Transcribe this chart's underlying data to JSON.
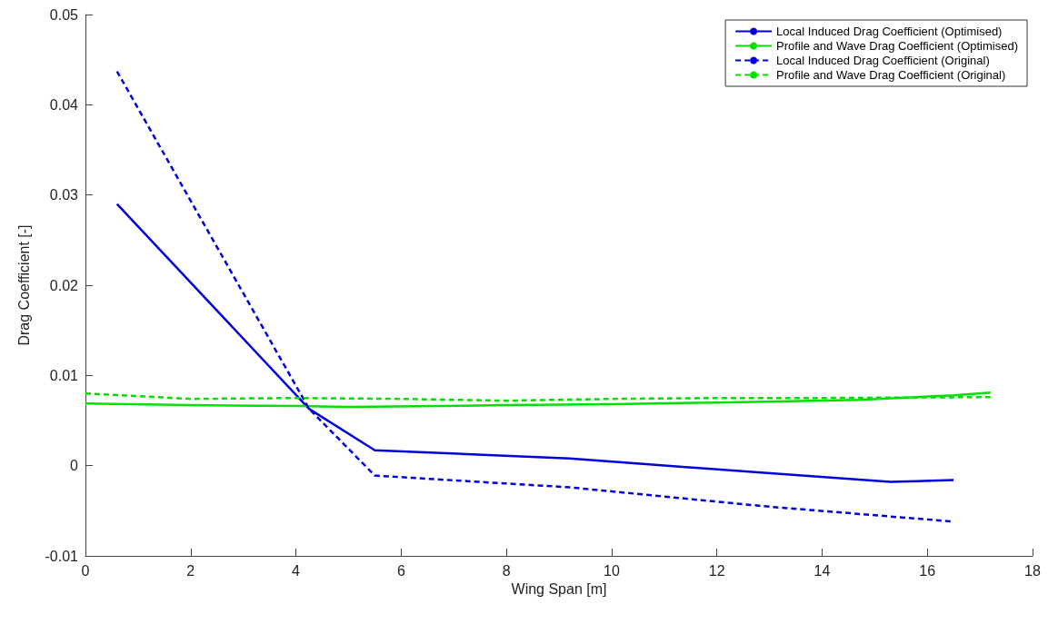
{
  "chart_data": {
    "type": "line",
    "xlabel": "Wing Span [m]",
    "ylabel": "Drag Coefficient [-]",
    "xlim": [
      0,
      18
    ],
    "xticks": [
      0,
      2,
      4,
      6,
      8,
      10,
      12,
      14,
      16,
      18
    ],
    "ylim": [
      -0.01,
      0.05
    ],
    "yticks": [
      -0.01,
      0,
      0.01,
      0.02,
      0.03,
      0.04,
      0.05
    ],
    "grid": false,
    "legend": "top right",
    "marker": "none",
    "series": [
      {
        "name": "Local Induced Drag Coefficient (Optimised)",
        "color": "#0000dd",
        "line_style": "solid",
        "x": [
          0.6,
          4.25,
          5.5,
          9.2,
          12.9,
          15.3,
          16.5
        ],
        "values": [
          0.029,
          0.0063,
          0.0017,
          0.0008,
          -0.0008,
          -0.0018,
          -0.0016
        ]
      },
      {
        "name": "Profile and Wave Drag Coefficient (Optimised)",
        "color": "#00e000",
        "line_style": "solid",
        "x": [
          0,
          2,
          4,
          5,
          8,
          10,
          12,
          14.7,
          16.5,
          17.2
        ],
        "values": [
          0.0069,
          0.0067,
          0.0066,
          0.0065,
          0.0067,
          0.0068,
          0.007,
          0.0073,
          0.0078,
          0.0081
        ]
      },
      {
        "name": "Local Induced Drag Coefficient (Original)",
        "color": "#0000dd",
        "line_style": "dashed",
        "x": [
          0.6,
          4.25,
          5.5,
          9.2,
          12.9,
          16.5
        ],
        "values": [
          0.0437,
          0.0063,
          -0.0011,
          -0.0024,
          -0.0045,
          -0.0062
        ]
      },
      {
        "name": "Profile and Wave Drag Coefficient (Original)",
        "color": "#00e000",
        "line_style": "dashed",
        "x": [
          0,
          2,
          4,
          6,
          8,
          10,
          12,
          14,
          17.2
        ],
        "values": [
          0.008,
          0.0074,
          0.0075,
          0.0074,
          0.0072,
          0.0074,
          0.0075,
          0.0075,
          0.0076
        ]
      }
    ]
  }
}
